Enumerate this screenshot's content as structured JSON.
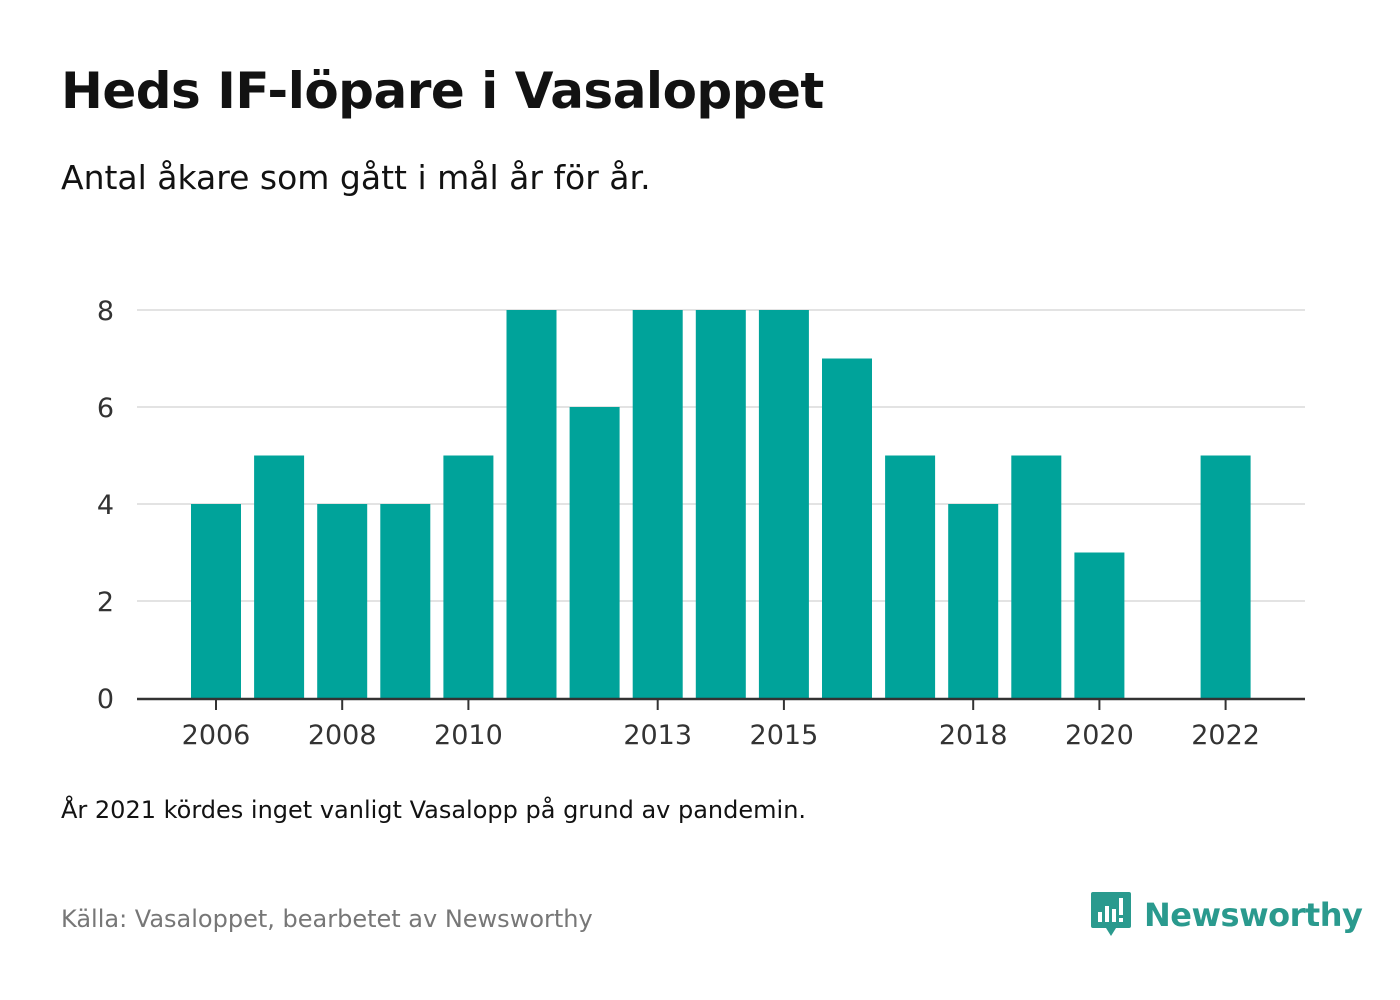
{
  "title": "Heds IF-löpare i Vasaloppet",
  "subtitle": "Antal åkare som gått i mål år för år.",
  "note": "År 2021 kördes inget vanligt Vasalopp på grund av pandemin.",
  "source": "Källa: Vasaloppet, bearbetet av Newsworthy",
  "brand": {
    "name": "Newsworthy",
    "icon": "newsworthy-logo-icon"
  },
  "colors": {
    "bar": "#00a39a",
    "grid": "#e3e3e3",
    "axis": "#333333",
    "text": "#333333",
    "brand": "#2a9a8e"
  },
  "chart_data": {
    "type": "bar",
    "title": "Heds IF-löpare i Vasaloppet",
    "subtitle": "Antal åkare som gått i mål år för år.",
    "xlabel": "",
    "ylabel": "",
    "categories": [
      "2006",
      "2007",
      "2008",
      "2009",
      "2010",
      "2011",
      "2012",
      "2013",
      "2014",
      "2015",
      "2016",
      "2017",
      "2018",
      "2019",
      "2020",
      "2021",
      "2022"
    ],
    "values": [
      4,
      5,
      4,
      4,
      5,
      8,
      6,
      8,
      8,
      8,
      7,
      5,
      4,
      5,
      3,
      null,
      5
    ],
    "x_tick_labels": [
      "2006",
      "2008",
      "2010",
      "2013",
      "2015",
      "2018",
      "2020",
      "2022"
    ],
    "ylim": [
      0,
      8
    ],
    "yticks": [
      0,
      2,
      4,
      6,
      8
    ],
    "grid": true,
    "legend": "none"
  }
}
